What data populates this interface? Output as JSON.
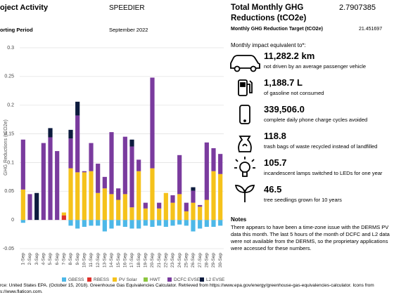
{
  "header": {
    "project_label": "oject Activity",
    "project": "SPEEDIER",
    "period_label": "orting Period",
    "period": "September 2022"
  },
  "summary": {
    "title": "Total Monthly GHG Reductions (tCO2e)",
    "value": "2.7907385",
    "target_label": "Monthly GHG Reduction Target (tCO2e)",
    "target": "21.451697"
  },
  "impacts": {
    "title": "Monthly impact equivalent to*:",
    "items": [
      {
        "value": "11,282.2 km",
        "label": "not driven by an average passenger vehicle"
      },
      {
        "value": "1,188.7 L",
        "label": "of gasoline not consumed"
      },
      {
        "value": "339,506.0",
        "label": "complete daily phone charge cycles avoided"
      },
      {
        "value": "118.8",
        "label": "trash bags of waste recycled instead of landfilled"
      },
      {
        "value": "105.7",
        "label": "incandescent lamps switched to LEDs for one year"
      },
      {
        "value": "46.5",
        "label": "tree seedlings grown for 10 years"
      }
    ]
  },
  "notes": {
    "title": "Notes",
    "text": "There appears to have been a time-zone issue with the DERMS PV data this month. The last 5 hours of the month of DCFC and L2 data were not available from the DERMS, so the proprietary applications were accessed for these numbers."
  },
  "source": [
    "rce: United States EPA. (October 15, 2018). Greenhouse Gas Equivalencies Calculator. Retrieved from https://www.epa.gov/energy/greenhouse-gas-equivalencies-calculator. Icons from",
    "s://www.flaticon.com."
  ],
  "chart_data": {
    "type": "stacked_bar",
    "y_label": "GHG Reductions (tCO2e)",
    "categories": [
      "1-Sep",
      "2-Sep",
      "3-Sep",
      "4-Sep",
      "5-Sep",
      "6-Sep",
      "7-Sep",
      "8-Sep",
      "9-Sep",
      "10-Sep",
      "11-Sep",
      "12-Sep",
      "13-Sep",
      "14-Sep",
      "15-Sep",
      "16-Sep",
      "17-Sep",
      "18-Sep",
      "19-Sep",
      "20-Sep",
      "21-Sep",
      "22-Sep",
      "23-Sep",
      "24-Sep",
      "25-Sep",
      "26-Sep",
      "27-Sep",
      "28-Sep",
      "29-Sep",
      "30-Sep"
    ],
    "series": [
      {
        "name": "GBESS",
        "color": "#4db8e8",
        "values": [
          -0.005,
          0,
          0,
          0,
          0,
          0,
          0,
          -0.01,
          -0.015,
          -0.012,
          -0.01,
          -0.01,
          -0.02,
          -0.015,
          -0.01,
          -0.012,
          -0.015,
          -0.015,
          -0.01,
          -0.012,
          -0.01,
          -0.012,
          -0.01,
          -0.008,
          -0.01,
          -0.02,
          -0.015,
          -0.012,
          -0.012,
          -0.01
        ]
      },
      {
        "name": "RBESS",
        "color": "#e0302a",
        "values": [
          0,
          0,
          0,
          0,
          0,
          0,
          0.008,
          0,
          0,
          0,
          0,
          0,
          0,
          0,
          0,
          0,
          0,
          0,
          0,
          0,
          0,
          0,
          0,
          0,
          0,
          0,
          0,
          0,
          0,
          0
        ]
      },
      {
        "name": "PV Solar",
        "color": "#f5c21b",
        "values": [
          0.053,
          0,
          0,
          0,
          0,
          0,
          0.005,
          0.09,
          0.083,
          0.083,
          0.085,
          0.047,
          0.055,
          0.045,
          0.035,
          0.045,
          0.022,
          0.085,
          0.02,
          0.09,
          0.02,
          0.047,
          0.03,
          0.045,
          0.015,
          0.03,
          0.023,
          0.035,
          0.085,
          0.08
        ]
      },
      {
        "name": "HWT",
        "color": "#8cc63f",
        "values": [
          0,
          0,
          0,
          0,
          0,
          0,
          0,
          0,
          0,
          0,
          0,
          0,
          0,
          0,
          0,
          0,
          0,
          0,
          0,
          0,
          0,
          0,
          0,
          0,
          0,
          0,
          0,
          0,
          0,
          0
        ]
      },
      {
        "name": "DCFC EVSE",
        "color": "#7a3b9e",
        "values": [
          0.087,
          0.045,
          0,
          0.134,
          0.144,
          0.12,
          0,
          0.052,
          0.099,
          0.002,
          0.049,
          0.051,
          0.02,
          0.108,
          0.02,
          0.1,
          0.106,
          0.02,
          0.01,
          0.158,
          0.01,
          0,
          0.013,
          0.068,
          0.015,
          0.021,
          0.003,
          0.1,
          0.04,
          0.035
        ]
      },
      {
        "name": "L2 EVSE",
        "color": "#0d1b3e",
        "values": [
          0,
          0,
          0.047,
          0,
          0.016,
          0,
          0,
          0.015,
          0.024,
          0,
          0,
          0,
          0,
          0,
          0,
          0,
          0.012,
          0,
          0,
          0,
          0,
          0,
          0,
          0,
          0,
          0.006,
          0,
          0,
          0,
          0
        ]
      }
    ],
    "ylim": [
      -0.05,
      0.3
    ],
    "yticks": [
      -0.05,
      0,
      0.05,
      0.1,
      0.15,
      0.2,
      0.25,
      0.3
    ],
    "grid": true
  }
}
